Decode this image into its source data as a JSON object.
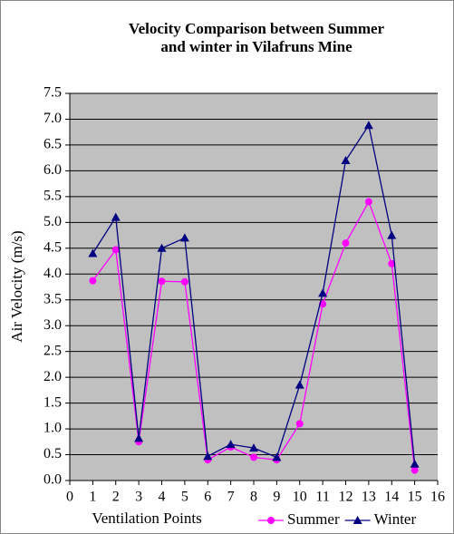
{
  "chart_data": {
    "type": "line",
    "title": [
      "Velocity Comparison between Summer",
      "and winter in Vilafruns Mine"
    ],
    "x_label": "Ventilation Points",
    "y_label": "Air Velocity (m/s)",
    "x": [
      1,
      2,
      3,
      4,
      5,
      6,
      7,
      8,
      9,
      10,
      11,
      12,
      13,
      14,
      15
    ],
    "series": [
      {
        "name": "Summer",
        "color": "#ff00ff",
        "marker": "circle",
        "values": [
          3.87,
          4.47,
          0.75,
          3.86,
          3.85,
          0.4,
          0.65,
          0.45,
          0.4,
          1.1,
          3.42,
          4.6,
          5.4,
          4.2,
          0.2
        ]
      },
      {
        "name": "Winter",
        "color": "#000080",
        "marker": "triangle",
        "values": [
          4.4,
          5.1,
          0.82,
          4.5,
          4.7,
          0.47,
          0.7,
          0.63,
          0.45,
          1.85,
          3.63,
          6.2,
          6.88,
          4.75,
          0.32
        ]
      }
    ],
    "xlim": [
      0,
      16
    ],
    "xticks": [
      0,
      1,
      2,
      3,
      4,
      5,
      6,
      7,
      8,
      9,
      10,
      11,
      12,
      13,
      14,
      15,
      16
    ],
    "ylim": [
      0,
      7.5
    ],
    "yticks": [
      {
        "value": 0,
        "label": "0.0"
      },
      0.5,
      {
        "value": 1,
        "label": "1.0"
      },
      1.5,
      {
        "value": 2,
        "label": "2.0"
      },
      2.5,
      {
        "value": 3,
        "label": "3.0"
      },
      3.5,
      {
        "value": 4,
        "label": "4.0"
      },
      4.5,
      {
        "value": 5,
        "label": "5.0"
      },
      5.5,
      {
        "value": 6,
        "label": "6.0"
      },
      6.5,
      {
        "value": 7,
        "label": "7.0"
      },
      7.5
    ],
    "grid": true,
    "legend": "bottom-right",
    "plot_background": "#c0c0c0"
  }
}
